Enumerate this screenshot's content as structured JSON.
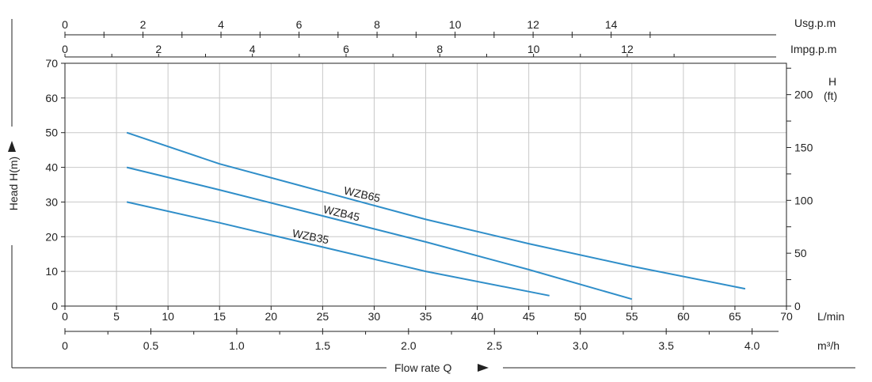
{
  "chart_data": {
    "type": "line",
    "xlabel": "Flow rate Q",
    "ylabel": "Head H(m)",
    "x_unit": "L/min",
    "xlim": [
      0,
      70
    ],
    "ylim": [
      0,
      70
    ],
    "x_ticks": [
      0,
      5,
      10,
      15,
      20,
      25,
      30,
      35,
      40,
      45,
      50,
      55,
      60,
      65,
      70
    ],
    "y_ticks": [
      0,
      10,
      20,
      30,
      40,
      50,
      60,
      70
    ],
    "grid": true,
    "series": [
      {
        "name": "WZB65",
        "x": [
          6,
          15,
          25,
          35,
          45,
          55,
          66
        ],
        "y": [
          50,
          41,
          33,
          25,
          18,
          11.5,
          5
        ]
      },
      {
        "name": "WZB45",
        "x": [
          6,
          15,
          25,
          35,
          45,
          55
        ],
        "y": [
          40,
          33.5,
          26,
          18.5,
          10.5,
          2
        ]
      },
      {
        "name": "WZB35",
        "x": [
          6,
          15,
          25,
          35,
          47
        ],
        "y": [
          30,
          24,
          17,
          10,
          3
        ]
      }
    ],
    "secondary_axes": {
      "usgpm": {
        "label": "Usg.p.m",
        "ticks": [
          0,
          2,
          4,
          6,
          8,
          10,
          12,
          14
        ]
      },
      "impgpm": {
        "label": "Impg.p.m",
        "ticks": [
          0,
          2,
          4,
          6,
          8,
          10,
          12
        ]
      },
      "m3h": {
        "label": "m³/h",
        "ticks": [
          "0",
          "0.5",
          "1.0",
          "1.5",
          "2.0",
          "2.5",
          "3.0",
          "3.5",
          "4.0"
        ]
      },
      "head_ft": {
        "label_top": "H",
        "label_unit": "(ft)",
        "ticks": [
          0,
          50,
          100,
          150,
          200
        ]
      }
    },
    "colors": {
      "curve": "#2f8ec9",
      "grid": "#c8c8c8",
      "axis": "#222222"
    }
  }
}
